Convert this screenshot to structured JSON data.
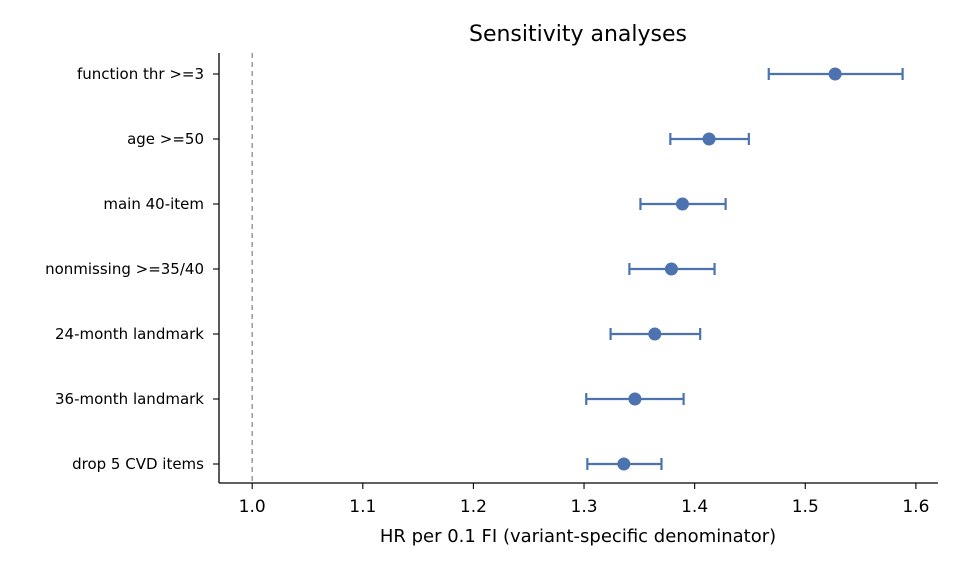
{
  "chart_data": {
    "type": "scatter",
    "title": "Sensitivity analyses",
    "xlabel": "HR per 0.1 FI (variant-specific denominator)",
    "ylabel": "",
    "xlim": [
      0.97,
      1.62
    ],
    "xticks": [
      1.0,
      1.1,
      1.2,
      1.3,
      1.4,
      1.5,
      1.6
    ],
    "xtick_labels": [
      "1.0",
      "1.1",
      "1.2",
      "1.3",
      "1.4",
      "1.5",
      "1.6"
    ],
    "reference_line": 1.0,
    "grid": false,
    "color": "#4c72b0",
    "categories": [
      "function thr >=3",
      "age >=50",
      "main 40-item",
      "nonmissing >=35/40",
      "24-month landmark",
      "36-month landmark",
      "drop 5 CVD items"
    ],
    "points": [
      {
        "label": "function thr >=3",
        "hr": 1.527,
        "lower": 1.467,
        "upper": 1.588
      },
      {
        "label": "age >=50",
        "hr": 1.413,
        "lower": 1.378,
        "upper": 1.449
      },
      {
        "label": "main 40-item",
        "hr": 1.389,
        "lower": 1.351,
        "upper": 1.428
      },
      {
        "label": "nonmissing >=35/40",
        "hr": 1.379,
        "lower": 1.341,
        "upper": 1.418
      },
      {
        "label": "24-month landmark",
        "hr": 1.364,
        "lower": 1.324,
        "upper": 1.405
      },
      {
        "label": "36-month landmark",
        "hr": 1.346,
        "lower": 1.302,
        "upper": 1.39
      },
      {
        "label": "drop 5 CVD items",
        "hr": 1.336,
        "lower": 1.303,
        "upper": 1.37
      }
    ]
  }
}
